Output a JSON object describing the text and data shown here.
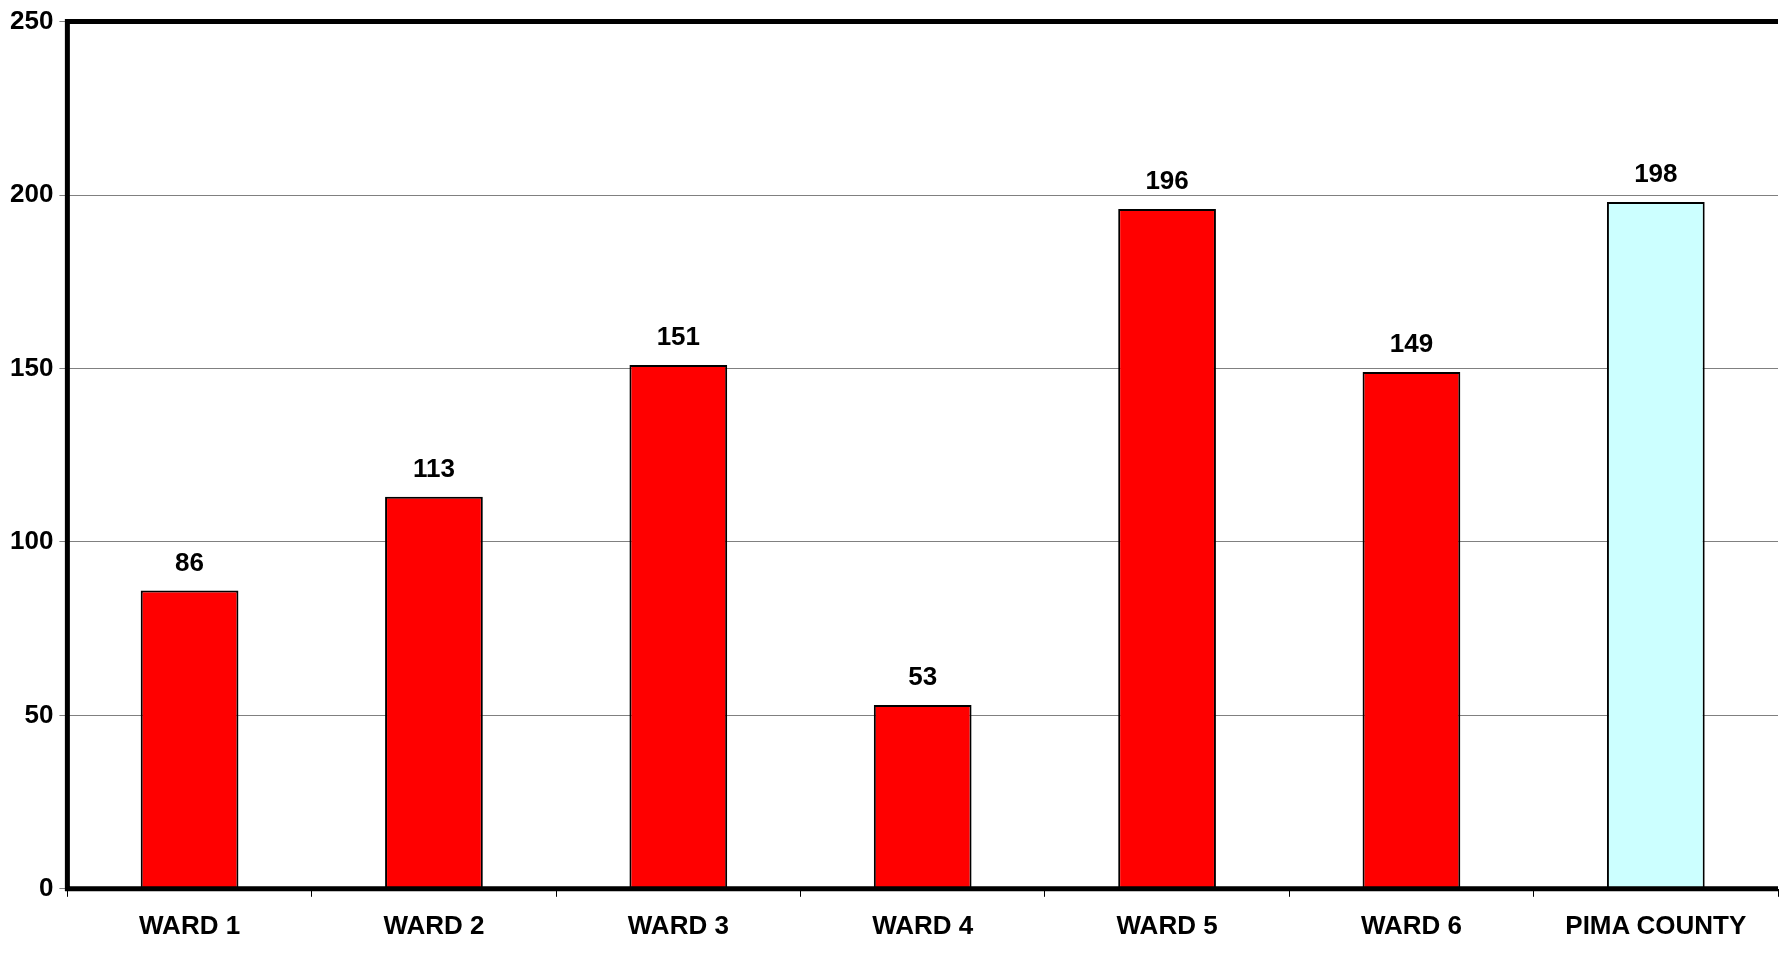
{
  "chart_data": {
    "type": "bar",
    "categories": [
      "WARD 1",
      "WARD 2",
      "WARD 3",
      "WARD 4",
      "WARD 5",
      "WARD 6",
      "PIMA COUNTY"
    ],
    "values": [
      86,
      113,
      151,
      53,
      196,
      149,
      198
    ],
    "colors": [
      "#ff0000",
      "#ff0000",
      "#ff0000",
      "#ff0000",
      "#ff0000",
      "#ff0000",
      "#ccffff"
    ],
    "ylim": [
      0,
      250
    ],
    "yticks": [
      0,
      50,
      100,
      150,
      200,
      250
    ],
    "grid": "y",
    "data_labels": true,
    "legend": false
  }
}
